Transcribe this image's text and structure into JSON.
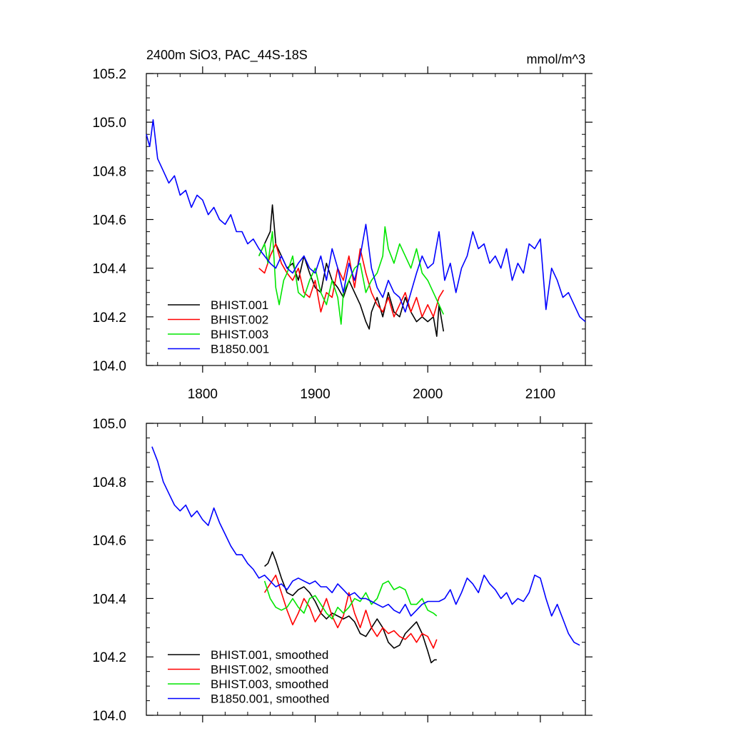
{
  "chart_data": [
    {
      "type": "line",
      "title": "2400m SiO3, PAC_44S-18S",
      "units": "mmol/m^3",
      "xlabel": "",
      "ylabel": "",
      "xlim": [
        1750,
        2140
      ],
      "ylim": [
        104.0,
        105.2
      ],
      "xticks": [
        1800,
        1900,
        2000,
        2100
      ],
      "xtick_labels": [
        "1800",
        "1900",
        "2000",
        "2100"
      ],
      "yticks": [
        104.0,
        104.2,
        104.4,
        104.6,
        104.8,
        105.0,
        105.2
      ],
      "ytick_labels": [
        "104.0",
        "104.2",
        "104.4",
        "104.6",
        "104.8",
        "105.0",
        "105.2"
      ],
      "grid": false,
      "legend": "bottom-left",
      "series": [
        {
          "name": "BHIST.001",
          "color": "#000000",
          "x": [
            1850,
            1855,
            1860,
            1862,
            1865,
            1870,
            1875,
            1880,
            1885,
            1890,
            1895,
            1900,
            1905,
            1910,
            1915,
            1920,
            1925,
            1930,
            1935,
            1940,
            1945,
            1948,
            1950,
            1955,
            1960,
            1965,
            1970,
            1975,
            1980,
            1985,
            1990,
            1995,
            2000,
            2005,
            2008,
            2010,
            2014
          ],
          "y": [
            104.45,
            104.5,
            104.55,
            104.66,
            104.5,
            104.45,
            104.4,
            104.42,
            104.35,
            104.45,
            104.38,
            104.32,
            104.3,
            104.42,
            104.35,
            104.32,
            104.28,
            104.35,
            104.3,
            104.25,
            104.18,
            104.15,
            104.22,
            104.28,
            104.2,
            104.3,
            104.22,
            104.2,
            104.28,
            104.22,
            104.18,
            104.2,
            104.18,
            104.2,
            104.12,
            104.25,
            104.14
          ]
        },
        {
          "name": "BHIST.002",
          "color": "#ff0000",
          "x": [
            1850,
            1855,
            1860,
            1865,
            1870,
            1875,
            1880,
            1885,
            1890,
            1895,
            1900,
            1905,
            1910,
            1915,
            1920,
            1925,
            1930,
            1935,
            1940,
            1945,
            1950,
            1955,
            1960,
            1965,
            1970,
            1975,
            1980,
            1985,
            1990,
            1995,
            2000,
            2005,
            2010,
            2014
          ],
          "y": [
            104.4,
            104.38,
            104.45,
            104.5,
            104.42,
            104.38,
            104.35,
            104.4,
            104.3,
            104.28,
            104.35,
            104.22,
            104.3,
            104.28,
            104.4,
            104.35,
            104.45,
            104.32,
            104.48,
            104.38,
            104.3,
            104.25,
            104.22,
            104.28,
            104.2,
            104.25,
            104.3,
            104.22,
            104.28,
            104.2,
            104.25,
            104.2,
            104.28,
            104.31
          ]
        },
        {
          "name": "BHIST.003",
          "color": "#00e600",
          "x": [
            1850,
            1855,
            1858,
            1862,
            1865,
            1868,
            1872,
            1875,
            1880,
            1885,
            1890,
            1895,
            1900,
            1905,
            1910,
            1915,
            1920,
            1923,
            1925,
            1930,
            1935,
            1940,
            1945,
            1950,
            1955,
            1960,
            1962,
            1965,
            1970,
            1975,
            1980,
            1985,
            1990,
            1995,
            2000,
            2005,
            2010,
            2014
          ],
          "y": [
            104.45,
            104.5,
            104.42,
            104.55,
            104.32,
            104.25,
            104.35,
            104.38,
            104.45,
            104.3,
            104.28,
            104.35,
            104.4,
            104.3,
            104.25,
            104.35,
            104.28,
            104.17,
            104.3,
            104.35,
            104.4,
            104.42,
            104.3,
            104.35,
            104.38,
            104.45,
            104.57,
            104.48,
            104.42,
            104.5,
            104.45,
            104.4,
            104.48,
            104.38,
            104.35,
            104.3,
            104.25,
            104.21
          ]
        },
        {
          "name": "B1850.001",
          "color": "#0000ff",
          "x": [
            1750,
            1753,
            1756,
            1760,
            1765,
            1770,
            1775,
            1780,
            1785,
            1790,
            1795,
            1800,
            1805,
            1810,
            1815,
            1820,
            1825,
            1830,
            1835,
            1840,
            1845,
            1850,
            1855,
            1860,
            1865,
            1870,
            1875,
            1880,
            1885,
            1890,
            1895,
            1900,
            1905,
            1910,
            1915,
            1920,
            1925,
            1930,
            1935,
            1940,
            1945,
            1950,
            1955,
            1960,
            1965,
            1970,
            1975,
            1980,
            1985,
            1990,
            1995,
            2000,
            2005,
            2010,
            2015,
            2020,
            2025,
            2030,
            2035,
            2040,
            2045,
            2050,
            2055,
            2060,
            2065,
            2070,
            2075,
            2080,
            2085,
            2090,
            2095,
            2100,
            2105,
            2110,
            2115,
            2120,
            2125,
            2130,
            2135,
            2140
          ],
          "y": [
            104.95,
            104.9,
            105.01,
            104.85,
            104.8,
            104.75,
            104.78,
            104.7,
            104.72,
            104.65,
            104.7,
            104.68,
            104.62,
            104.65,
            104.6,
            104.58,
            104.62,
            104.55,
            104.55,
            104.5,
            104.52,
            104.48,
            104.45,
            104.42,
            104.4,
            104.45,
            104.4,
            104.38,
            104.42,
            104.45,
            104.4,
            104.38,
            104.45,
            104.35,
            104.48,
            104.4,
            104.3,
            104.42,
            104.35,
            104.45,
            104.58,
            104.4,
            104.32,
            104.28,
            104.35,
            104.3,
            104.28,
            104.22,
            104.3,
            104.38,
            104.45,
            104.4,
            104.42,
            104.55,
            104.35,
            104.42,
            104.3,
            104.4,
            104.45,
            104.55,
            104.48,
            104.5,
            104.42,
            104.45,
            104.4,
            104.48,
            104.35,
            104.42,
            104.38,
            104.5,
            104.48,
            104.52,
            104.23,
            104.4,
            104.35,
            104.28,
            104.3,
            104.25,
            104.2,
            104.18
          ]
        }
      ]
    },
    {
      "type": "line",
      "title": "",
      "xlabel": "",
      "ylabel": "",
      "xlim": [
        1750,
        2140
      ],
      "ylim": [
        104.0,
        105.0
      ],
      "xticks": [
        1800,
        1900,
        2000,
        2100
      ],
      "yticks": [
        104.0,
        104.2,
        104.4,
        104.6,
        104.8,
        105.0
      ],
      "ytick_labels": [
        "104.0",
        "104.2",
        "104.4",
        "104.6",
        "104.8",
        "105.0"
      ],
      "grid": false,
      "legend": "bottom-left",
      "series": [
        {
          "name": "BHIST.001, smoothed",
          "color": "#000000",
          "x": [
            1855,
            1858,
            1862,
            1865,
            1870,
            1875,
            1880,
            1885,
            1890,
            1895,
            1900,
            1905,
            1910,
            1915,
            1920,
            1925,
            1930,
            1935,
            1940,
            1945,
            1950,
            1955,
            1960,
            1965,
            1970,
            1975,
            1980,
            1985,
            1990,
            1995,
            2000,
            2003,
            2006,
            2008
          ],
          "y": [
            104.51,
            104.52,
            104.56,
            104.53,
            104.47,
            104.42,
            104.41,
            104.43,
            104.44,
            104.42,
            104.39,
            104.35,
            104.33,
            104.35,
            104.34,
            104.33,
            104.34,
            104.32,
            104.28,
            104.27,
            104.3,
            104.33,
            104.3,
            104.25,
            104.23,
            104.24,
            104.28,
            104.3,
            104.32,
            104.28,
            104.22,
            104.18,
            104.19,
            104.19
          ]
        },
        {
          "name": "BHIST.002, smoothed",
          "color": "#ff0000",
          "x": [
            1855,
            1860,
            1865,
            1870,
            1875,
            1880,
            1885,
            1890,
            1895,
            1900,
            1905,
            1910,
            1915,
            1920,
            1925,
            1930,
            1935,
            1940,
            1945,
            1950,
            1955,
            1960,
            1965,
            1970,
            1975,
            1980,
            1985,
            1990,
            1995,
            2000,
            2005,
            2008
          ],
          "y": [
            104.42,
            104.45,
            104.48,
            104.42,
            104.36,
            104.31,
            104.35,
            104.4,
            104.37,
            104.32,
            104.35,
            104.4,
            104.34,
            104.3,
            104.34,
            104.42,
            104.35,
            104.3,
            104.36,
            104.3,
            104.27,
            104.3,
            104.28,
            104.29,
            104.27,
            104.26,
            104.28,
            104.25,
            104.28,
            104.27,
            104.23,
            104.26
          ]
        },
        {
          "name": "BHIST.003, smoothed",
          "color": "#00e600",
          "x": [
            1855,
            1860,
            1865,
            1870,
            1875,
            1880,
            1885,
            1890,
            1895,
            1900,
            1905,
            1910,
            1915,
            1920,
            1925,
            1930,
            1935,
            1940,
            1945,
            1950,
            1955,
            1960,
            1965,
            1970,
            1975,
            1980,
            1985,
            1990,
            1995,
            2000,
            2005,
            2008
          ],
          "y": [
            104.46,
            104.4,
            104.37,
            104.36,
            104.37,
            104.4,
            104.37,
            104.35,
            104.4,
            104.41,
            104.38,
            104.35,
            104.33,
            104.37,
            104.35,
            104.37,
            104.4,
            104.39,
            104.42,
            104.38,
            104.4,
            104.45,
            104.46,
            104.43,
            104.44,
            104.43,
            104.38,
            104.38,
            104.4,
            104.36,
            104.35,
            104.34
          ]
        },
        {
          "name": "B1850.001, smoothed",
          "color": "#0000ff",
          "x": [
            1755,
            1760,
            1765,
            1770,
            1775,
            1780,
            1785,
            1790,
            1795,
            1800,
            1805,
            1810,
            1815,
            1820,
            1825,
            1830,
            1835,
            1840,
            1845,
            1850,
            1855,
            1860,
            1865,
            1870,
            1875,
            1880,
            1885,
            1890,
            1895,
            1900,
            1905,
            1910,
            1915,
            1920,
            1925,
            1930,
            1935,
            1940,
            1945,
            1950,
            1955,
            1960,
            1965,
            1970,
            1975,
            1980,
            1985,
            1990,
            1995,
            2000,
            2005,
            2010,
            2015,
            2020,
            2025,
            2030,
            2035,
            2040,
            2045,
            2050,
            2055,
            2060,
            2065,
            2070,
            2075,
            2080,
            2085,
            2090,
            2095,
            2100,
            2105,
            2110,
            2115,
            2120,
            2125,
            2130,
            2135
          ],
          "y": [
            104.92,
            104.87,
            104.8,
            104.76,
            104.72,
            104.7,
            104.72,
            104.68,
            104.7,
            104.67,
            104.65,
            104.71,
            104.66,
            104.62,
            104.58,
            104.55,
            104.55,
            104.52,
            104.5,
            104.47,
            104.48,
            104.46,
            104.44,
            104.45,
            104.43,
            104.46,
            104.47,
            104.46,
            104.45,
            104.46,
            104.44,
            104.44,
            104.42,
            104.45,
            104.43,
            104.41,
            104.42,
            104.4,
            104.4,
            104.39,
            104.38,
            104.37,
            104.38,
            104.36,
            104.35,
            104.38,
            104.34,
            104.36,
            104.38,
            104.39,
            104.39,
            104.39,
            104.4,
            104.43,
            104.38,
            104.42,
            104.47,
            104.45,
            104.42,
            104.48,
            104.45,
            104.43,
            104.4,
            104.42,
            104.38,
            104.4,
            104.39,
            104.42,
            104.48,
            104.47,
            104.4,
            104.34,
            104.38,
            104.33,
            104.28,
            104.25,
            104.24
          ]
        }
      ]
    }
  ]
}
